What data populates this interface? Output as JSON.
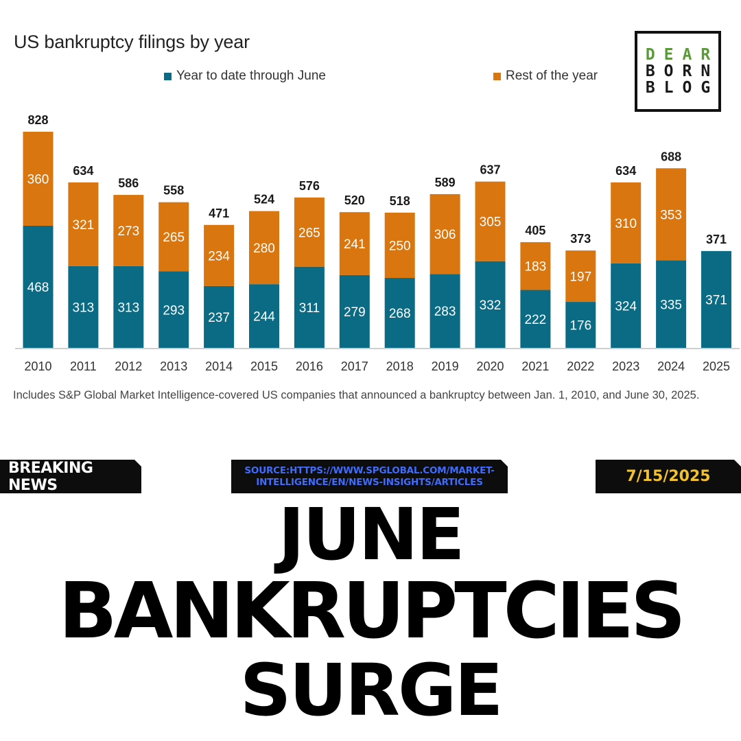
{
  "chart_data": {
    "type": "bar",
    "stacked": true,
    "title": "US bankruptcy filings by year",
    "categories": [
      "2010",
      "2011",
      "2012",
      "2013",
      "2014",
      "2015",
      "2016",
      "2017",
      "2018",
      "2019",
      "2020",
      "2021",
      "2022",
      "2023",
      "2024",
      "2025"
    ],
    "series": [
      {
        "name": "Year to date through June",
        "color": "#0b6b85",
        "values": [
          468,
          313,
          313,
          293,
          237,
          244,
          311,
          279,
          268,
          283,
          332,
          222,
          176,
          324,
          335,
          371
        ]
      },
      {
        "name": "Rest of the year",
        "color": "#d9760f",
        "values": [
          360,
          321,
          273,
          265,
          234,
          280,
          265,
          241,
          250,
          306,
          305,
          183,
          197,
          310,
          353,
          null
        ]
      }
    ],
    "totals": [
      828,
      634,
      586,
      558,
      471,
      524,
      576,
      520,
      518,
      589,
      637,
      405,
      373,
      634,
      688,
      371
    ],
    "legend_position": "top",
    "grid": false,
    "ylim": [
      0,
      828
    ]
  },
  "footnote": "Includes S&P Global Market Intelligence-covered US companies that announced a bankruptcy between Jan. 1, 2010, and June 30, 2025.",
  "logo": {
    "line1": "DEAR",
    "line2": "BORN",
    "line3": "BLOG"
  },
  "banner": {
    "left": "BREAKING NEWS",
    "source_line1": "SOURCE:HTTPS://WWW.SPGLOBAL.COM/MARKET-",
    "source_line2": "INTELLIGENCE/EN/NEWS-INSIGHTS/ARTICLES",
    "date": "7/15/2025"
  },
  "headline": {
    "line1": "JUNE",
    "line2": "BANKRUPTCIES",
    "line3": "SURGE"
  }
}
